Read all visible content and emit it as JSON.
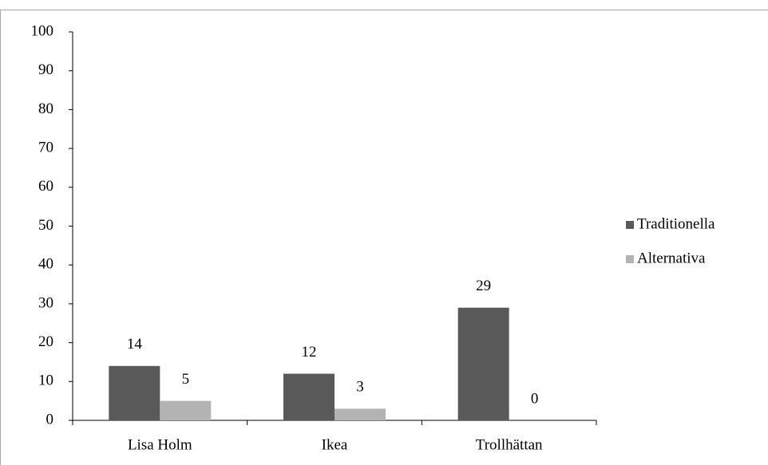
{
  "chart_data": {
    "type": "bar",
    "categories": [
      "Lisa Holm",
      "Ikea",
      "Trollhättan"
    ],
    "series": [
      {
        "name": "Traditionella",
        "color": "#595959",
        "values": [
          14,
          12,
          29
        ]
      },
      {
        "name": "Alternativa",
        "color": "#b3b3b3",
        "values": [
          5,
          3,
          0
        ]
      }
    ],
    "ylim": [
      0,
      100
    ],
    "yticks": [
      0,
      10,
      20,
      30,
      40,
      50,
      60,
      70,
      80,
      90,
      100
    ],
    "legend": "right"
  }
}
